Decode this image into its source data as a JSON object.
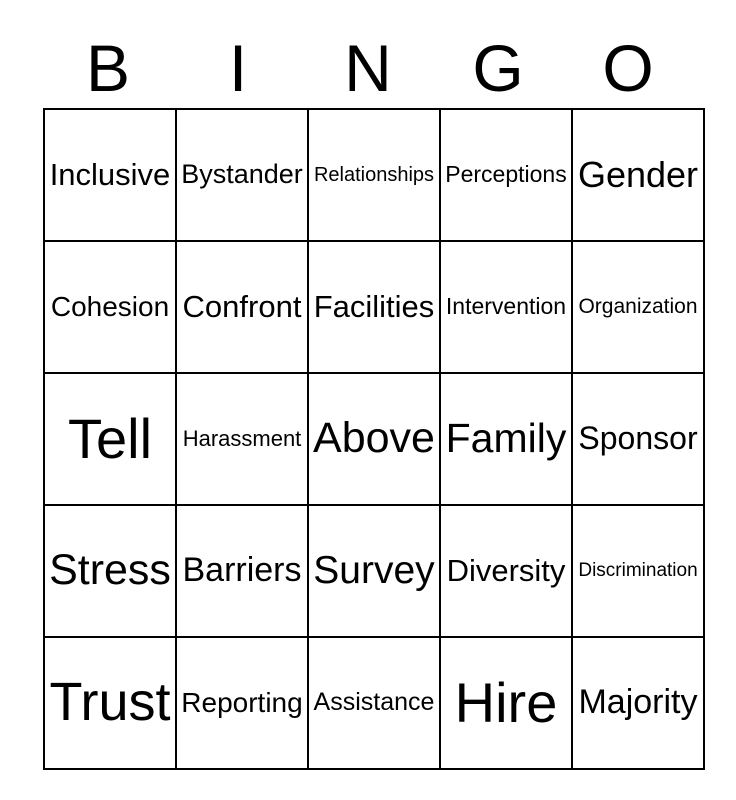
{
  "title": "BINGO",
  "header_letters": [
    "B",
    "I",
    "N",
    "G",
    "O"
  ],
  "grid": {
    "rows": [
      [
        "Inclusive",
        "Bystander",
        "Relationships",
        "Perceptions",
        "Gender"
      ],
      [
        "Cohesion",
        "Confront",
        "Facilities",
        "Intervention",
        "Organization"
      ],
      [
        "Tell",
        "Harassment",
        "Above",
        "Family",
        "Sponsor"
      ],
      [
        "Stress",
        "Barriers",
        "Survey",
        "Diversity",
        "Discrimination"
      ],
      [
        "Trust",
        "Reporting",
        "Assistance",
        "Hire",
        "Majority"
      ]
    ]
  },
  "colors": {
    "background": "#ffffff",
    "border": "#000000",
    "text": "#000000"
  }
}
